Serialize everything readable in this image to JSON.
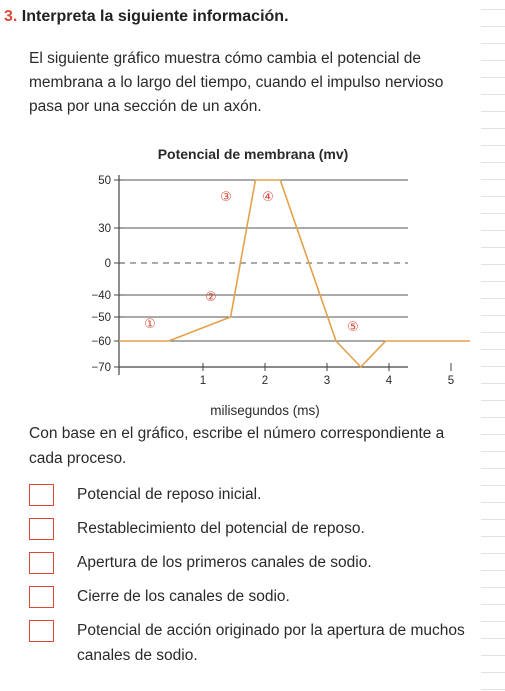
{
  "exercise": {
    "number": "3.",
    "title": "Interpreta la siguiente información.",
    "intro": "El siguiente gráfico muestra cómo cambia el potencial de membrana a lo largo del tiempo, cuando el impulso nervioso pasa por una sección de un axón.",
    "prompt": "Con base en el gráfico, escribe el número correspondiente a cada proceso.",
    "options": [
      "Potencial de reposo inicial.",
      "Restablecimiento del potencial de reposo.",
      "Apertura de los primeros canales de sodio.",
      "Cierre de los canales de sodio.",
      "Potencial de acción originado por la apertura de muchos canales de sodio."
    ]
  },
  "colors": {
    "accent": "#d94a3a",
    "line": "#e3a24a",
    "axis": "#444444"
  },
  "chart_data": {
    "type": "line",
    "title": "Potencial de membrana (mv)",
    "xlabel": "milisegundos (ms)",
    "ylabel": "",
    "y_ticks": [
      "50",
      "30",
      "0",
      "−40",
      "−50",
      "−60",
      "−70"
    ],
    "x_ticks": [
      "1",
      "2",
      "3",
      "4",
      "5"
    ],
    "series": [
      {
        "x": [
          0,
          0.8,
          1.8,
          2.2,
          2.6,
          3.5,
          3.9,
          4.3,
          5.8
        ],
        "y": [
          -60,
          -60,
          -50,
          50,
          50,
          -60,
          -70,
          -60,
          -60
        ]
      }
    ],
    "annotations": [
      "①",
      "②",
      "③",
      "④",
      "⑤"
    ]
  }
}
